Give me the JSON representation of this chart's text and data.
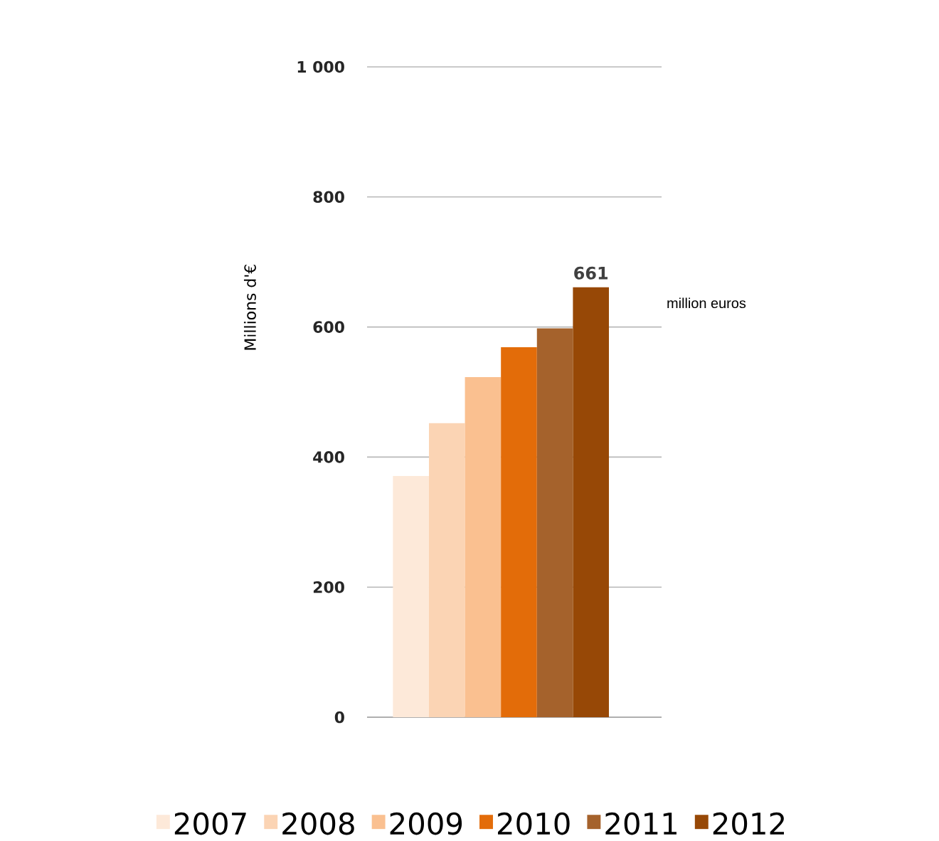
{
  "chart_data": {
    "type": "bar",
    "ylabel": "Millions d'€",
    "categories": [
      null
    ],
    "series": [
      {
        "name": "2007",
        "color": "#fde9d9",
        "values": [
          371
        ]
      },
      {
        "name": "2008",
        "color": "#fbd4b4",
        "values": [
          452
        ]
      },
      {
        "name": "2009",
        "color": "#fac090",
        "values": [
          523
        ]
      },
      {
        "name": "2010",
        "color": "#e36c09",
        "values": [
          569
        ]
      },
      {
        "name": "2011",
        "color": "#a5622c",
        "values": [
          598
        ]
      },
      {
        "name": "2012",
        "color": "#974806",
        "values": [
          661
        ],
        "value_labels": [
          "661"
        ]
      }
    ],
    "ylim": [
      0,
      1000
    ],
    "yticks": [
      0,
      200,
      400,
      600,
      800,
      {
        "value": 1000,
        "label": "1 000"
      }
    ],
    "grid": "y",
    "legend": "bottom",
    "annotations": [
      "million euros"
    ]
  }
}
